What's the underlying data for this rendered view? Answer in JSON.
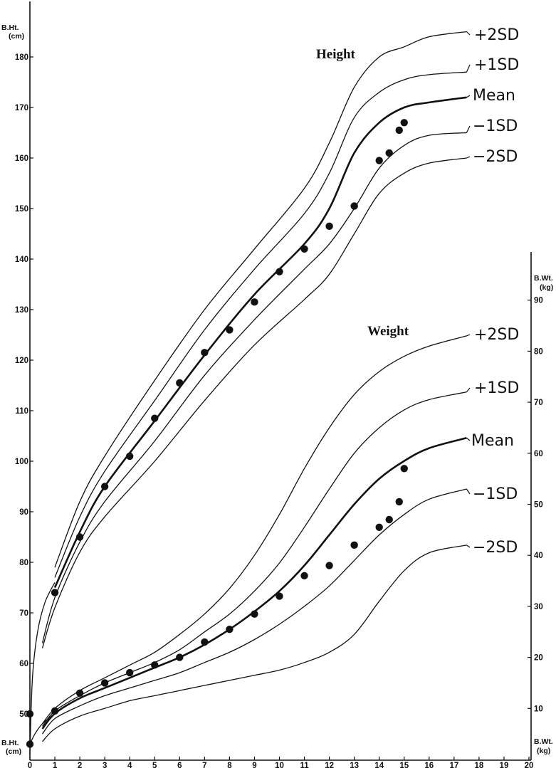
{
  "chart_data": [
    {
      "type": "line",
      "title": "Height",
      "x_ticks": [
        "0",
        "1",
        "2",
        "3",
        "4",
        "5",
        "6",
        "7",
        "8",
        "9",
        "10",
        "11",
        "12",
        "13",
        "14",
        "15",
        "16",
        "17",
        "18",
        "19",
        "20"
      ],
      "xlim": [
        0,
        20
      ],
      "ylim": [
        40,
        185
      ],
      "y_ticks": [
        "50",
        "60",
        "70",
        "80",
        "90",
        "100",
        "110",
        "120",
        "130",
        "140",
        "150",
        "160",
        "170",
        "180"
      ],
      "y_axis_label_top": [
        "B.Ht.",
        "(cm)"
      ],
      "y_axis_label_bottom": [
        "B.Ht.",
        "(cm)"
      ],
      "series": [
        {
          "name": "+2SD",
          "style": "thin",
          "x": [
            1,
            2,
            3,
            5,
            7,
            9,
            11,
            12,
            13,
            14,
            15,
            16,
            17.5
          ],
          "y": [
            79,
            92,
            101,
            116,
            130,
            142,
            154,
            163,
            174,
            180,
            182,
            184,
            185
          ]
        },
        {
          "name": "+1SD",
          "style": "thin",
          "x": [
            1,
            2,
            3,
            5,
            7,
            9,
            11,
            12,
            13,
            14,
            15,
            16,
            17.5
          ],
          "y": [
            77,
            89,
            98,
            112,
            126,
            138,
            149,
            157,
            168,
            173,
            175.5,
            176.5,
            177
          ]
        },
        {
          "name": "Mean",
          "style": "bold",
          "x": [
            1,
            2,
            3,
            5,
            7,
            9,
            11,
            12,
            13,
            14,
            15,
            16,
            17.5
          ],
          "y": [
            75,
            86,
            95,
            108,
            121,
            133,
            143,
            150,
            161,
            167,
            170,
            171,
            172
          ]
        },
        {
          "name": "−1SD",
          "style": "thin",
          "x": [
            0.5,
            1,
            2,
            3,
            5,
            7,
            9,
            11,
            12,
            13,
            14,
            15,
            16,
            17.5
          ],
          "y": [
            64,
            73,
            84,
            92,
            104,
            117,
            128,
            138,
            143,
            150,
            158,
            162.5,
            164.5,
            165
          ]
        },
        {
          "name": "−2SD",
          "style": "thin",
          "x": [
            0.5,
            1,
            2,
            3,
            5,
            7,
            9,
            11,
            12,
            13,
            14,
            15,
            16,
            17.5
          ],
          "y": [
            63,
            71,
            82,
            89,
            100,
            112,
            123,
            132,
            137,
            145,
            153,
            157,
            159,
            160
          ]
        }
      ],
      "birth_segment": {
        "x": [
          0,
          0.1,
          0.3,
          0.6,
          1
        ],
        "y": [
          42,
          57,
          66,
          72,
          76
        ]
      },
      "observed_points": {
        "x": [
          0,
          1,
          2,
          3,
          4,
          5,
          6,
          7,
          8,
          9,
          10,
          11,
          12,
          13,
          14,
          14.4,
          14.8,
          15
        ],
        "y": [
          50,
          74,
          85,
          95,
          101,
          108.5,
          115.5,
          121.5,
          126,
          131.5,
          137.5,
          142,
          146.5,
          150.5,
          159.5,
          161,
          165.5,
          167
        ]
      }
    },
    {
      "type": "line",
      "title": "Weight",
      "x_ticks": [
        "0",
        "1",
        "2",
        "3",
        "4",
        "5",
        "6",
        "7",
        "8",
        "9",
        "10",
        "11",
        "12",
        "13",
        "14",
        "15",
        "16",
        "17",
        "18",
        "19",
        "20"
      ],
      "xlim": [
        0,
        20
      ],
      "ylim": [
        0,
        95
      ],
      "y_ticks": [
        "10",
        "20",
        "30",
        "40",
        "50",
        "60",
        "70",
        "80",
        "90"
      ],
      "y_axis_label_top": [
        "B.Wt.",
        "(kg)"
      ],
      "y_axis_label_bottom": [
        "B.Wt.",
        "(kg)"
      ],
      "series": [
        {
          "name": "+2SD",
          "style": "thin",
          "x": [
            0.5,
            1,
            2,
            3,
            4,
            5,
            6,
            7,
            8,
            9,
            10,
            11,
            12,
            13,
            14,
            15,
            16,
            17.5
          ],
          "y": [
            7,
            10,
            13.5,
            16,
            18.5,
            21,
            24.5,
            28.5,
            33.5,
            40,
            48,
            57,
            65,
            71.5,
            76,
            79,
            81,
            83
          ]
        },
        {
          "name": "+1SD",
          "style": "thin",
          "x": [
            0.5,
            1,
            2,
            3,
            4,
            5,
            6,
            7,
            8,
            9,
            10,
            11,
            12,
            13,
            14,
            15,
            16,
            17.5
          ],
          "y": [
            6.5,
            9.5,
            12.5,
            15,
            17,
            19,
            21.5,
            25,
            28.5,
            33,
            38.5,
            45.5,
            53,
            60,
            65,
            68.5,
            70.5,
            72
          ]
        },
        {
          "name": "Mean",
          "style": "bold",
          "x": [
            0.5,
            1,
            2,
            3,
            4,
            5,
            6,
            7,
            8,
            9,
            10,
            11,
            12,
            13,
            14,
            15,
            16,
            17.5
          ],
          "y": [
            6,
            9,
            12,
            14,
            16,
            18,
            20,
            22.5,
            25.5,
            29,
            33,
            38,
            44,
            50,
            55,
            58.5,
            61,
            63
          ]
        },
        {
          "name": "−1SD",
          "style": "thin",
          "x": [
            0.5,
            1,
            2,
            3,
            4,
            5,
            6,
            7,
            8,
            9,
            10,
            11,
            12,
            13,
            14,
            15,
            16,
            17.5
          ],
          "y": [
            5,
            8,
            10.5,
            12.5,
            14,
            15.5,
            17,
            19,
            21,
            23.5,
            26.5,
            30,
            34,
            39,
            44,
            48,
            51,
            53
          ]
        },
        {
          "name": "−2SD",
          "style": "thin",
          "x": [
            0.5,
            1,
            2,
            3,
            4,
            5,
            6,
            7,
            8,
            9,
            10,
            11,
            12,
            13,
            14,
            15,
            16,
            17.5
          ],
          "y": [
            3.5,
            6,
            8.5,
            10,
            11.5,
            12.5,
            13.5,
            14.5,
            15.5,
            16.5,
            17.5,
            19,
            21,
            24.5,
            31,
            37,
            40.5,
            42
          ]
        }
      ],
      "birth_segment": {
        "x": [
          0,
          0.2,
          0.5,
          1
        ],
        "y": [
          3,
          5,
          7,
          9
        ]
      },
      "observed_points": {
        "x": [
          0,
          1,
          2,
          3,
          4,
          5,
          6,
          7,
          8,
          9,
          10,
          11,
          12,
          13,
          14,
          14.4,
          14.8,
          15
        ],
        "y": [
          3,
          9.5,
          13,
          15,
          17,
          18.5,
          20,
          23,
          25.5,
          28.5,
          32,
          36,
          38,
          42,
          45.5,
          47,
          50.5,
          57
        ]
      }
    }
  ]
}
